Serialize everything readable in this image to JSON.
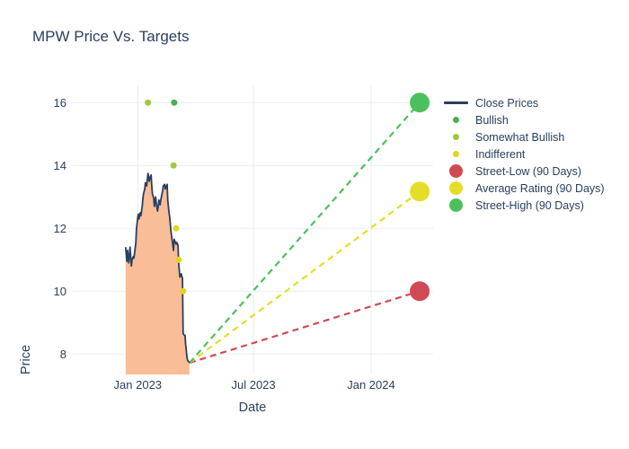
{
  "colors": {
    "background": "#ffffff",
    "title_text": "#2a3f5f",
    "grid": "#ebf0f8",
    "close_line": "#2a3f5f",
    "close_fill": "#f9bd98",
    "bullish": "#4cae4f",
    "somewhat_bullish": "#a2c63a",
    "indifferent": "#e2d51f",
    "street_low": "#cf4a52",
    "average_rating": "#e4de28",
    "street_high": "#4cc05e"
  },
  "legend": {
    "items": [
      {
        "label": "Close Prices",
        "type": "line",
        "color_key": "close_line"
      },
      {
        "label": "Bullish",
        "type": "dot-sm",
        "color_key": "bullish"
      },
      {
        "label": "Somewhat Bullish",
        "type": "dot-sm",
        "color_key": "somewhat_bullish"
      },
      {
        "label": "Indifferent",
        "type": "dot-sm",
        "color_key": "indifferent"
      },
      {
        "label": "Street-Low (90 Days)",
        "type": "dot-lg",
        "color_key": "street_low"
      },
      {
        "label": "Average Rating (90 Days)",
        "type": "dot-lg",
        "color_key": "average_rating"
      },
      {
        "label": "Street-High (90 Days)",
        "type": "dot-lg",
        "color_key": "street_high"
      }
    ]
  },
  "chart_data": {
    "type": "line",
    "title": "MPW Price Vs. Targets",
    "xlabel": "Date",
    "ylabel": "Price",
    "grid": true,
    "legend_position": "right",
    "x_axis": {
      "unit": "days",
      "span_days": 565,
      "ticks": [
        {
          "label": "Jan 2023",
          "day": 103
        },
        {
          "label": "Jul 2023",
          "day": 284
        },
        {
          "label": "Jan 2024",
          "day": 468
        }
      ]
    },
    "y_axis": {
      "min": 7.35,
      "max": 16.55,
      "ticks": [
        8,
        10,
        12,
        14,
        16
      ]
    },
    "close_prices": {
      "name": "Close Prices",
      "day_offsets": [
        84,
        86,
        87,
        89,
        90,
        91,
        93,
        94,
        96,
        97,
        98,
        100,
        101,
        103,
        104,
        105,
        107,
        108,
        110,
        111,
        112,
        114,
        115,
        117,
        118,
        119,
        121,
        122,
        124,
        125,
        126,
        128,
        129,
        131,
        132,
        134,
        135,
        136,
        138,
        139,
        141,
        142,
        143,
        145,
        146,
        148,
        149,
        150,
        152,
        153,
        155,
        156,
        157,
        159,
        160,
        162,
        163,
        164,
        166,
        167,
        169,
        170,
        171,
        173,
        174,
        176,
        177,
        178,
        180,
        181,
        183,
        184
      ],
      "values": [
        11.4,
        10.95,
        11.3,
        10.9,
        11.15,
        11.4,
        10.8,
        11.0,
        11.1,
        11.05,
        11.2,
        11.55,
        12.0,
        12.35,
        12.45,
        12.3,
        12.5,
        12.4,
        12.7,
        12.95,
        13.1,
        13.25,
        13.45,
        13.35,
        13.55,
        13.75,
        13.5,
        13.6,
        13.7,
        13.35,
        13.1,
        12.95,
        12.7,
        13.0,
        12.8,
        12.55,
        12.7,
        12.9,
        12.75,
        12.9,
        13.1,
        13.2,
        13.35,
        13.4,
        13.25,
        13.35,
        13.4,
        12.9,
        12.5,
        12.35,
        11.9,
        11.75,
        11.6,
        11.3,
        11.65,
        11.55,
        11.5,
        11.55,
        11.45,
        10.9,
        10.45,
        10.5,
        10.55,
        10.4,
        8.65,
        8.6,
        8.6,
        8.3,
        7.9,
        7.8,
        7.75,
        7.72
      ]
    },
    "ratings": [
      {
        "label": "Somewhat Bullish",
        "day": 119,
        "price": 16,
        "color_key": "somewhat_bullish"
      },
      {
        "label": "Bullish",
        "day": 160,
        "price": 16,
        "color_key": "bullish"
      },
      {
        "label": "Somewhat Bullish",
        "day": 159,
        "price": 14,
        "color_key": "somewhat_bullish"
      },
      {
        "label": "Indifferent",
        "day": 163,
        "price": 12,
        "color_key": "indifferent"
      },
      {
        "label": "Indifferent",
        "day": 167,
        "price": 11,
        "color_key": "indifferent"
      },
      {
        "label": "Indifferent",
        "day": 174,
        "price": 10,
        "color_key": "indifferent"
      }
    ],
    "target_line_origin": {
      "day": 184,
      "price": 7.72
    },
    "targets": [
      {
        "label": "Street-Low (90 Days)",
        "day": 544,
        "price": 10,
        "color_key": "street_low"
      },
      {
        "label": "Average Rating (90 Days)",
        "day": 544,
        "price": 13.17,
        "color_key": "average_rating"
      },
      {
        "label": "Street-High (90 Days)",
        "day": 544,
        "price": 16,
        "color_key": "street_high"
      }
    ]
  }
}
